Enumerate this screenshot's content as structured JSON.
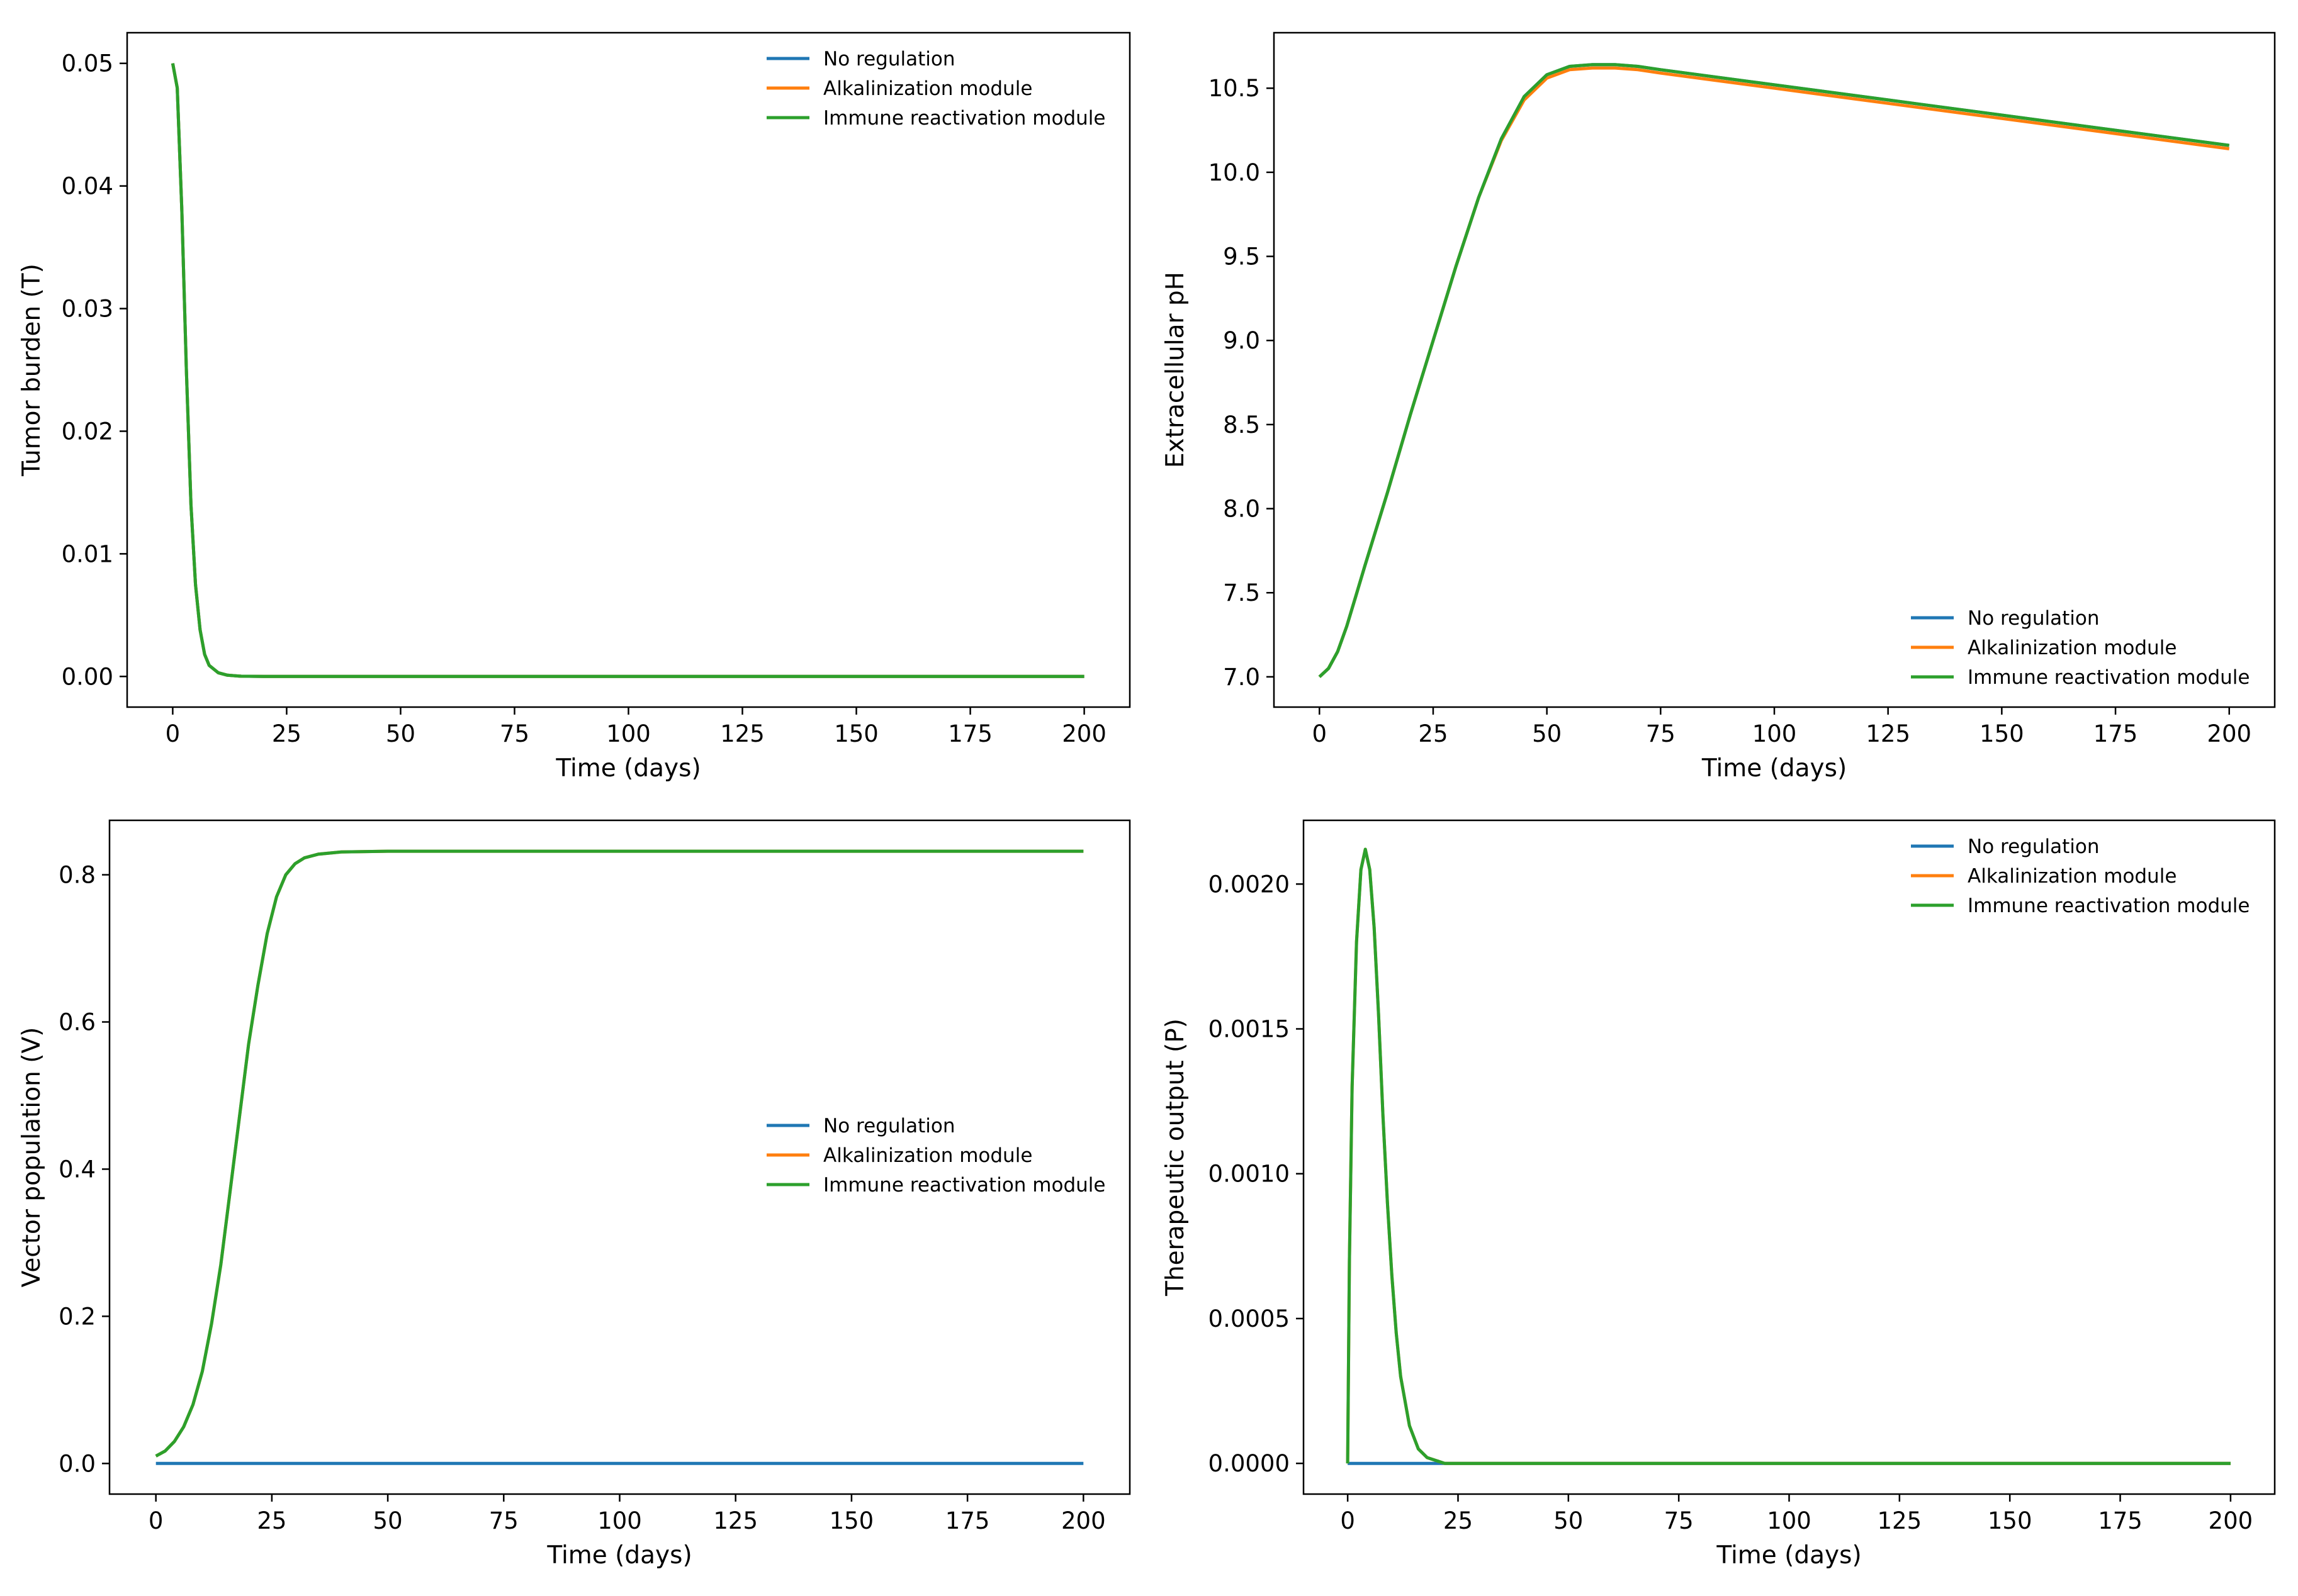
{
  "figure": {
    "colors": {
      "no_regulation": "#1f77b4",
      "alkalinization": "#ff7f0e",
      "immune": "#2ca02c",
      "axes": "#000000",
      "background": "#ffffff"
    }
  },
  "chart_data": [
    {
      "id": "tumor",
      "type": "line",
      "xlabel": "Time (days)",
      "ylabel": "Tumor burden (T)",
      "xlim": [
        -10,
        210
      ],
      "ylim": [
        -0.0025,
        0.0525
      ],
      "xticks": [
        0,
        25,
        50,
        75,
        100,
        125,
        150,
        175,
        200
      ],
      "xtick_labels": [
        "0",
        "25",
        "50",
        "75",
        "100",
        "125",
        "150",
        "175",
        "200"
      ],
      "yticks": [
        0,
        0.01,
        0.02,
        0.03,
        0.04,
        0.05
      ],
      "ytick_labels": [
        "0.00",
        "0.01",
        "0.02",
        "0.03",
        "0.04",
        "0.05"
      ],
      "grid": false,
      "legend_position": "top-right",
      "series": [
        {
          "name": "No regulation",
          "color": "#1f77b4",
          "x": [
            0,
            1,
            2,
            3,
            4,
            5,
            6,
            7,
            8,
            10,
            12,
            15,
            20,
            25,
            50,
            100,
            150,
            200
          ],
          "y": [
            0.05,
            0.048,
            0.038,
            0.025,
            0.014,
            0.0075,
            0.0038,
            0.0018,
            0.0009,
            0.0003,
            0.0001,
            2e-05,
            0,
            0,
            0,
            0,
            0,
            0
          ]
        },
        {
          "name": "Alkalinization module",
          "color": "#ff7f0e",
          "x": [
            0,
            1,
            2,
            3,
            4,
            5,
            6,
            7,
            8,
            10,
            12,
            15,
            20,
            25,
            50,
            100,
            150,
            200
          ],
          "y": [
            0.05,
            0.048,
            0.038,
            0.025,
            0.014,
            0.0075,
            0.0038,
            0.0018,
            0.0009,
            0.0003,
            0.0001,
            2e-05,
            0,
            0,
            0,
            0,
            0,
            0
          ]
        },
        {
          "name": "Immune reactivation module",
          "color": "#2ca02c",
          "x": [
            0,
            1,
            2,
            3,
            4,
            5,
            6,
            7,
            8,
            10,
            12,
            15,
            20,
            25,
            50,
            100,
            150,
            200
          ],
          "y": [
            0.05,
            0.048,
            0.038,
            0.025,
            0.014,
            0.0075,
            0.0038,
            0.0018,
            0.0009,
            0.0003,
            0.0001,
            2e-05,
            0,
            0,
            0,
            0,
            0,
            0
          ]
        }
      ]
    },
    {
      "id": "ph",
      "type": "line",
      "xlabel": "Time (days)",
      "ylabel": "Extracellular pH",
      "xlim": [
        -10,
        210
      ],
      "ylim": [
        6.82,
        10.83
      ],
      "xticks": [
        0,
        25,
        50,
        75,
        100,
        125,
        150,
        175,
        200
      ],
      "xtick_labels": [
        "0",
        "25",
        "50",
        "75",
        "100",
        "125",
        "150",
        "175",
        "200"
      ],
      "yticks": [
        7.0,
        7.5,
        8.0,
        8.5,
        9.0,
        9.5,
        10.0,
        10.5
      ],
      "ytick_labels": [
        "7.0",
        "7.5",
        "8.0",
        "8.5",
        "9.0",
        "9.5",
        "10.0",
        "10.5"
      ],
      "grid": false,
      "legend_position": "bottom-right",
      "series": [
        {
          "name": "No regulation",
          "color": "#1f77b4",
          "x": [
            0,
            2,
            4,
            6,
            8,
            10,
            15,
            20,
            25,
            30,
            35,
            40,
            45,
            50,
            55,
            60,
            65,
            70,
            75,
            100,
            125,
            150,
            175,
            200
          ],
          "y": [
            7.0,
            7.05,
            7.15,
            7.3,
            7.48,
            7.66,
            8.1,
            8.56,
            9.0,
            9.44,
            9.85,
            10.2,
            10.45,
            10.58,
            10.63,
            10.64,
            10.64,
            10.63,
            10.61,
            10.52,
            10.43,
            10.34,
            10.25,
            10.16
          ]
        },
        {
          "name": "Alkalinization module",
          "color": "#ff7f0e",
          "x": [
            0,
            2,
            4,
            6,
            8,
            10,
            15,
            20,
            25,
            30,
            35,
            40,
            45,
            50,
            55,
            60,
            65,
            70,
            75,
            100,
            125,
            150,
            175,
            200
          ],
          "y": [
            7.0,
            7.05,
            7.15,
            7.3,
            7.48,
            7.66,
            8.1,
            8.56,
            9.0,
            9.44,
            9.85,
            10.19,
            10.43,
            10.56,
            10.61,
            10.62,
            10.62,
            10.61,
            10.59,
            10.5,
            10.41,
            10.32,
            10.23,
            10.14
          ]
        },
        {
          "name": "Immune reactivation module",
          "color": "#2ca02c",
          "x": [
            0,
            2,
            4,
            6,
            8,
            10,
            15,
            20,
            25,
            30,
            35,
            40,
            45,
            50,
            55,
            60,
            65,
            70,
            75,
            100,
            125,
            150,
            175,
            200
          ],
          "y": [
            7.0,
            7.05,
            7.15,
            7.3,
            7.48,
            7.66,
            8.1,
            8.56,
            9.0,
            9.44,
            9.85,
            10.2,
            10.45,
            10.58,
            10.63,
            10.64,
            10.64,
            10.63,
            10.61,
            10.52,
            10.43,
            10.34,
            10.25,
            10.16
          ]
        }
      ]
    },
    {
      "id": "vector",
      "type": "line",
      "xlabel": "Time (days)",
      "ylabel": "Vector population (V)",
      "xlim": [
        -10,
        210
      ],
      "ylim": [
        -0.0416,
        0.874
      ],
      "xticks": [
        0,
        25,
        50,
        75,
        100,
        125,
        150,
        175,
        200
      ],
      "xtick_labels": [
        "0",
        "25",
        "50",
        "75",
        "100",
        "125",
        "150",
        "175",
        "200"
      ],
      "yticks": [
        0,
        0.2,
        0.4,
        0.6,
        0.8
      ],
      "ytick_labels": [
        "0.0",
        "0.2",
        "0.4",
        "0.6",
        "0.8"
      ],
      "grid": false,
      "legend_position": "center-right",
      "series": [
        {
          "name": "No regulation",
          "color": "#1f77b4",
          "x": [
            0,
            200
          ],
          "y": [
            0,
            0
          ]
        },
        {
          "name": "Alkalinization module",
          "color": "#ff7f0e",
          "x": [
            0,
            2,
            4,
            6,
            8,
            10,
            12,
            14,
            16,
            18,
            20,
            22,
            24,
            26,
            28,
            30,
            32,
            35,
            40,
            50,
            75,
            100,
            150,
            200
          ],
          "y": [
            0.01,
            0.017,
            0.03,
            0.05,
            0.08,
            0.125,
            0.19,
            0.27,
            0.37,
            0.47,
            0.57,
            0.65,
            0.72,
            0.77,
            0.8,
            0.815,
            0.823,
            0.828,
            0.831,
            0.832,
            0.832,
            0.832,
            0.832,
            0.832
          ]
        },
        {
          "name": "Immune reactivation module",
          "color": "#2ca02c",
          "x": [
            0,
            2,
            4,
            6,
            8,
            10,
            12,
            14,
            16,
            18,
            20,
            22,
            24,
            26,
            28,
            30,
            32,
            35,
            40,
            50,
            75,
            100,
            150,
            200
          ],
          "y": [
            0.01,
            0.017,
            0.03,
            0.05,
            0.08,
            0.125,
            0.19,
            0.27,
            0.37,
            0.47,
            0.57,
            0.65,
            0.72,
            0.77,
            0.8,
            0.815,
            0.823,
            0.828,
            0.831,
            0.832,
            0.832,
            0.832,
            0.832,
            0.832
          ]
        }
      ]
    },
    {
      "id": "therapeutic",
      "type": "line",
      "xlabel": "Time (days)",
      "ylabel": "Therapeutic output (P)",
      "xlim": [
        -10,
        210
      ],
      "ylim": [
        -0.000106,
        0.00222
      ],
      "xticks": [
        0,
        25,
        50,
        75,
        100,
        125,
        150,
        175,
        200
      ],
      "xtick_labels": [
        "0",
        "25",
        "50",
        "75",
        "100",
        "125",
        "150",
        "175",
        "200"
      ],
      "yticks": [
        0,
        0.0005,
        0.001,
        0.0015,
        0.002
      ],
      "ytick_labels": [
        "0.0000",
        "0.0005",
        "0.0010",
        "0.0015",
        "0.0020"
      ],
      "grid": false,
      "legend_position": "top-right",
      "series": [
        {
          "name": "No regulation",
          "color": "#1f77b4",
          "x": [
            0,
            200
          ],
          "y": [
            0,
            0
          ]
        },
        {
          "name": "Alkalinization module",
          "color": "#ff7f0e",
          "x": [
            0,
            0.4,
            1,
            2,
            3,
            4,
            5,
            6,
            7,
            8,
            9,
            10,
            11,
            12,
            14,
            16,
            18,
            20,
            22,
            25,
            30,
            50,
            100,
            150,
            200
          ],
          "y": [
            0,
            0.0007,
            0.0013,
            0.0018,
            0.00205,
            0.00212,
            0.00205,
            0.00185,
            0.00155,
            0.0012,
            0.0009,
            0.00065,
            0.00045,
            0.0003,
            0.00013,
            5e-05,
            2e-05,
            1e-05,
            0,
            0,
            0,
            0,
            0,
            0,
            0
          ]
        },
        {
          "name": "Immune reactivation module",
          "color": "#2ca02c",
          "x": [
            0,
            0.4,
            1,
            2,
            3,
            4,
            5,
            6,
            7,
            8,
            9,
            10,
            11,
            12,
            14,
            16,
            18,
            20,
            22,
            25,
            30,
            50,
            100,
            150,
            200
          ],
          "y": [
            0,
            0.0007,
            0.0013,
            0.0018,
            0.00205,
            0.00212,
            0.00205,
            0.00185,
            0.00155,
            0.0012,
            0.0009,
            0.00065,
            0.00045,
            0.0003,
            0.00013,
            5e-05,
            2e-05,
            1e-05,
            0,
            0,
            0,
            0,
            0,
            0,
            0
          ]
        }
      ]
    }
  ]
}
